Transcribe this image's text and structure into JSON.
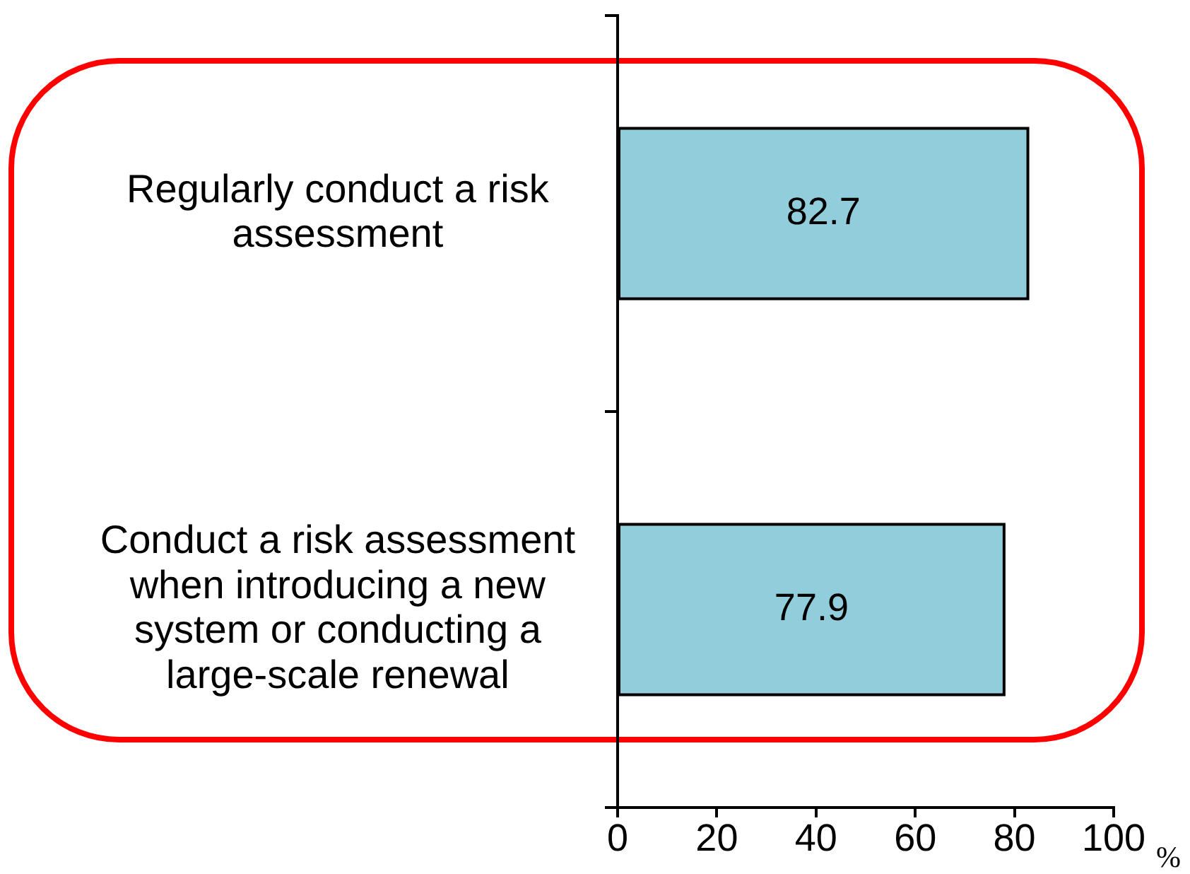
{
  "chart_data": {
    "type": "bar",
    "orientation": "horizontal",
    "categories": [
      "Regularly conduct a risk assessment",
      "Conduct a risk assessment when introducing a new system or conducting a large-scale renewal"
    ],
    "values": [
      82.7,
      77.9
    ],
    "color": "#92cddc",
    "xlim": [
      0,
      100
    ],
    "xticks": [
      0,
      20,
      40,
      60,
      80,
      100
    ],
    "xlabel": "%",
    "data_labels": true
  }
}
